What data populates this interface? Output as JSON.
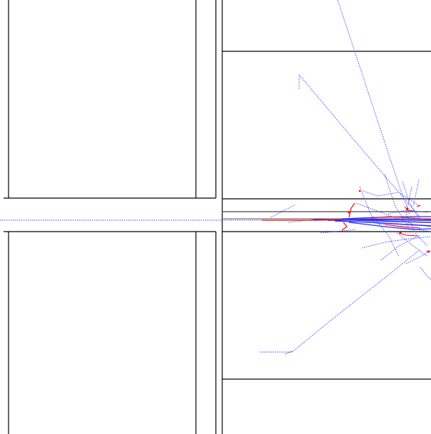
{
  "colors": {
    "background": "#ffffff",
    "structure_lines": "#000000",
    "trace_blue": "#3b3bff",
    "trace_red": "#ff0000",
    "guide_gray": "#666666"
  },
  "labels": {
    "title": "",
    "subtitle": ""
  }
}
